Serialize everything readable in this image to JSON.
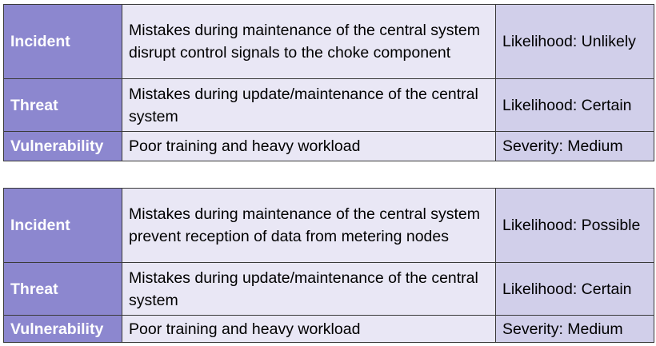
{
  "tables": [
    {
      "incident": {
        "label": "Incident",
        "description": "Mistakes during maintenance of the central system disrupt control signals to the choke component",
        "rating": "Likelihood: Unlikely"
      },
      "threat": {
        "label": "Threat",
        "description": "Mistakes during update/maintenance of the central system",
        "rating": "Likelihood: Certain"
      },
      "vulnerability": {
        "label": "Vulnerability",
        "description": "Poor training and heavy workload",
        "rating": "Severity: Medium"
      }
    },
    {
      "incident": {
        "label": "Incident",
        "description": "Mistakes during maintenance of the central system prevent reception of data from metering nodes",
        "rating": "Likelihood: Possible"
      },
      "threat": {
        "label": "Threat",
        "description": "Mistakes during update/maintenance of the central system",
        "rating": "Likelihood: Certain"
      },
      "vulnerability": {
        "label": "Vulnerability",
        "description": "Poor training and heavy workload",
        "rating": "Severity: Medium"
      }
    }
  ],
  "colors": {
    "label_bg": "#8c87cf",
    "description_bg": "#e9e7f5",
    "rating_bg": "#d1cfea",
    "border": "#3a3a3a"
  }
}
